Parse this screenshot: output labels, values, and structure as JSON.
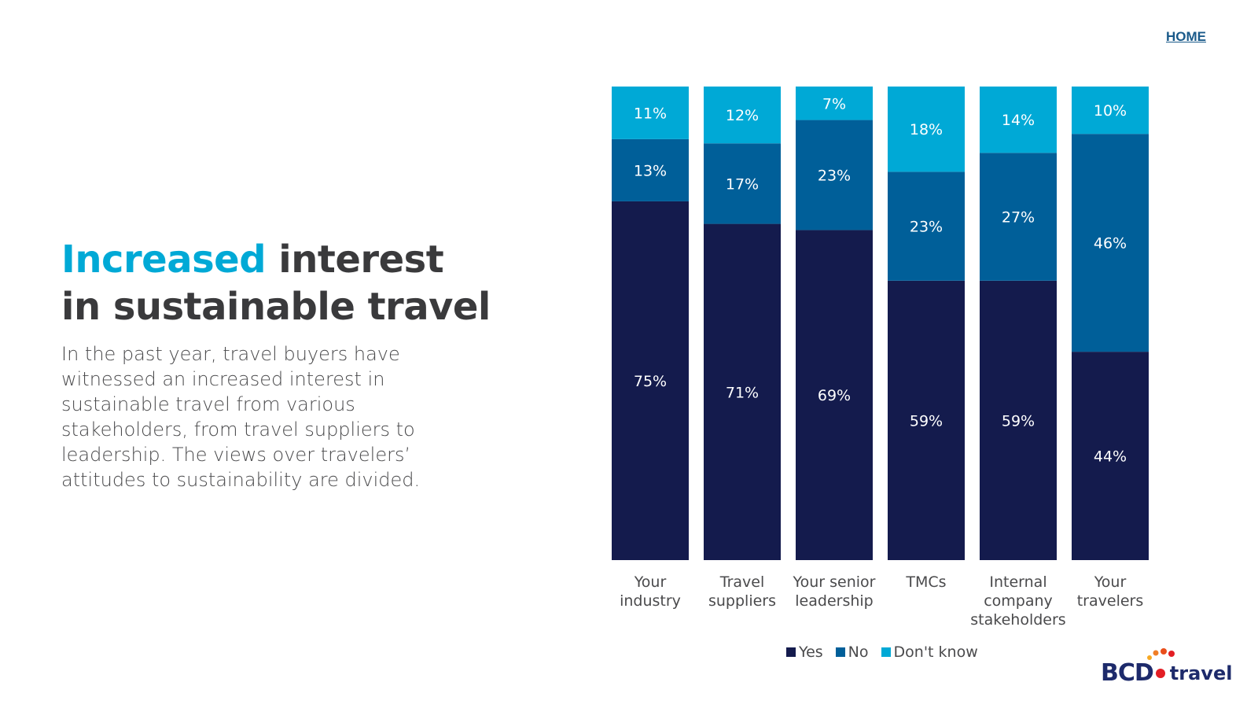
{
  "nav": {
    "home_label": "HOME"
  },
  "headline": {
    "accent": "Increased",
    "rest_line1": " interest",
    "line2": "in sustainable travel"
  },
  "body_text": "In the past year, travel buyers have witnessed an increased interest in sustainable travel from various stakeholders, from travel suppliers to leadership. The views over travelers’ attitudes to sustainability are divided.",
  "colors": {
    "yes": "#141b4d",
    "no": "#005f99",
    "dont_know": "#00a9d6",
    "accent": "#00a9d6"
  },
  "chart_data": {
    "type": "bar",
    "stacked": true,
    "normalized": true,
    "categories": [
      [
        "Your",
        "industry"
      ],
      [
        "Travel",
        "suppliers"
      ],
      [
        "Your senior",
        "leadership"
      ],
      [
        "TMCs"
      ],
      [
        "Internal",
        "company",
        "stakeholders"
      ],
      [
        "Your",
        "travelers"
      ]
    ],
    "series": [
      {
        "name": "Yes",
        "values": [
          75,
          71,
          69,
          59,
          59,
          44
        ]
      },
      {
        "name": "No",
        "values": [
          13,
          17,
          23,
          23,
          27,
          46
        ]
      },
      {
        "name": "Don't know",
        "values": [
          11,
          12,
          7,
          18,
          14,
          10
        ]
      }
    ],
    "value_suffix": "%",
    "legend_position": "bottom"
  },
  "logo": {
    "brand": "BCD",
    "product": "travel"
  }
}
